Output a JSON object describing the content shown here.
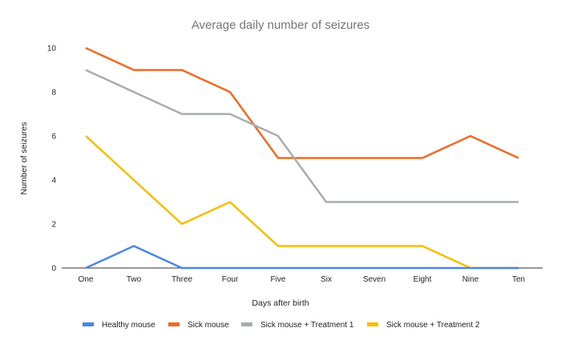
{
  "chart_data": {
    "type": "line",
    "title": "Average daily number of seizures",
    "xlabel": "Days after birth",
    "ylabel": "Number of seizures",
    "categories": [
      "One",
      "Two",
      "Three",
      "Four",
      "Five",
      "Six",
      "Seven",
      "Eight",
      "Nine",
      "Ten"
    ],
    "ylim": [
      0,
      10
    ],
    "yticks": [
      "0",
      "2",
      "4",
      "6",
      "8",
      "10"
    ],
    "grid": false,
    "legend": "bottom",
    "series": [
      {
        "name": "Healthy mouse",
        "color": "#4a86e8",
        "values": [
          0,
          1,
          0,
          0,
          0,
          0,
          0,
          0,
          0,
          0
        ]
      },
      {
        "name": "Sick mouse",
        "color": "#f26a21",
        "values": [
          10,
          9,
          9,
          8,
          5,
          5,
          5,
          5,
          6,
          5
        ]
      },
      {
        "name": "Sick mouse + Treatment 1",
        "color": "#a8adab",
        "values": [
          9,
          8,
          7,
          7,
          6,
          3,
          3,
          3,
          3,
          3
        ]
      },
      {
        "name": "Sick mouse + Treatment 2",
        "color": "#fbbc04",
        "values": [
          6,
          4,
          2,
          3,
          1,
          1,
          1,
          1,
          0,
          0
        ]
      }
    ]
  }
}
